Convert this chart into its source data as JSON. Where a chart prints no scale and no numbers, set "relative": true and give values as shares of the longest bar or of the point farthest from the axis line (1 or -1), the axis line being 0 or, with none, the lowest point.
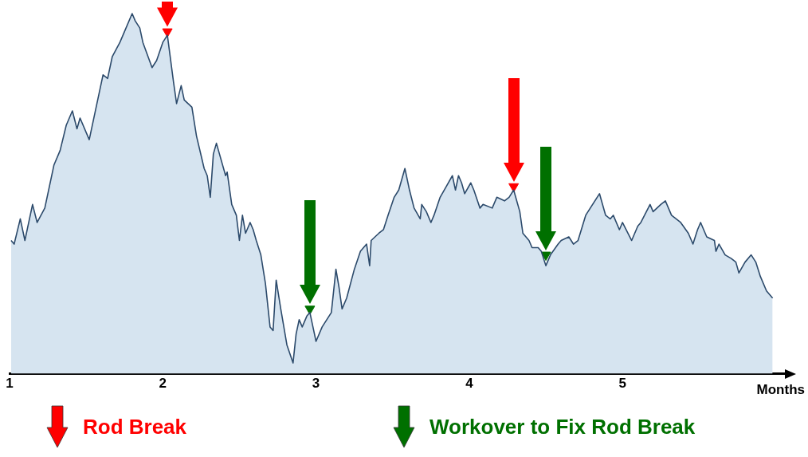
{
  "chart_data": {
    "type": "area",
    "relative": true,
    "xlabel": "Months",
    "xlim": [
      1,
      6.06
    ],
    "xticks": [
      1,
      2,
      3,
      4,
      5
    ],
    "legend": "bottom",
    "series": [
      {
        "color": "#2c4a6b",
        "x": [
          1.01,
          1.03,
          1.07,
          1.1,
          1.15,
          1.18,
          1.23,
          1.29,
          1.33,
          1.37,
          1.41,
          1.44,
          1.46,
          1.52,
          1.59,
          1.61,
          1.64,
          1.67,
          1.72,
          1.75,
          1.8,
          1.82,
          1.85,
          1.87,
          1.93,
          1.96,
          2.0,
          2.03,
          2.07,
          2.09,
          2.12,
          2.14,
          2.19,
          2.22,
          2.27,
          2.29,
          2.31,
          2.33,
          2.35,
          2.41,
          2.42,
          2.45,
          2.48,
          2.5,
          2.52,
          2.54,
          2.57,
          2.59,
          2.61,
          2.64,
          2.67,
          2.7,
          2.72,
          2.74,
          2.77,
          2.81,
          2.85,
          2.87,
          2.89,
          2.91,
          2.94,
          2.96,
          2.98,
          3.0,
          3.04,
          3.07,
          3.1,
          3.13,
          3.15,
          3.17,
          3.2,
          3.25,
          3.29,
          3.33,
          3.35,
          3.36,
          3.41,
          3.44,
          3.47,
          3.51,
          3.54,
          3.58,
          3.61,
          3.64,
          3.68,
          3.69,
          3.72,
          3.75,
          3.77,
          3.81,
          3.85,
          3.89,
          3.91,
          3.93,
          3.95,
          3.97,
          4.01,
          4.03,
          4.07,
          4.09,
          4.15,
          4.18,
          4.23,
          4.26,
          4.29,
          4.33,
          4.35,
          4.39,
          4.41,
          4.45,
          4.47,
          4.5,
          4.53,
          4.58,
          4.6,
          4.65,
          4.68,
          4.71,
          4.76,
          4.85,
          4.89,
          4.92,
          4.94,
          4.98,
          5.0,
          5.06,
          5.1,
          5.12,
          5.18,
          5.2,
          5.25,
          5.28,
          5.32,
          5.38,
          5.43,
          5.46,
          5.49,
          5.51,
          5.55,
          5.6,
          5.61,
          5.63,
          5.67,
          5.71,
          5.74,
          5.76,
          5.8,
          5.84,
          5.87,
          5.9,
          5.94,
          5.98
        ],
        "values": [
          0.37,
          0.36,
          0.43,
          0.37,
          0.47,
          0.42,
          0.46,
          0.58,
          0.62,
          0.69,
          0.73,
          0.68,
          0.71,
          0.65,
          0.79,
          0.83,
          0.82,
          0.88,
          0.92,
          0.95,
          1,
          0.98,
          0.96,
          0.92,
          0.85,
          0.87,
          0.92,
          0.94,
          0.81,
          0.75,
          0.8,
          0.76,
          0.74,
          0.66,
          0.57,
          0.55,
          0.49,
          0.61,
          0.64,
          0.55,
          0.56,
          0.47,
          0.44,
          0.37,
          0.44,
          0.39,
          0.42,
          0.4,
          0.37,
          0.33,
          0.25,
          0.13,
          0.12,
          0.26,
          0.18,
          0.08,
          0.03,
          0.11,
          0.15,
          0.13,
          0.16,
          0.17,
          0.13,
          0.09,
          0.13,
          0.15,
          0.17,
          0.29,
          0.24,
          0.18,
          0.21,
          0.29,
          0.34,
          0.36,
          0.3,
          0.37,
          0.39,
          0.4,
          0.44,
          0.49,
          0.51,
          0.57,
          0.51,
          0.46,
          0.43,
          0.47,
          0.45,
          0.42,
          0.44,
          0.49,
          0.52,
          0.55,
          0.51,
          0.55,
          0.53,
          0.5,
          0.53,
          0.51,
          0.46,
          0.47,
          0.46,
          0.49,
          0.48,
          0.49,
          0.51,
          0.45,
          0.39,
          0.37,
          0.35,
          0.35,
          0.34,
          0.3,
          0.33,
          0.36,
          0.37,
          0.38,
          0.36,
          0.37,
          0.44,
          0.5,
          0.44,
          0.43,
          0.44,
          0.4,
          0.42,
          0.37,
          0.41,
          0.42,
          0.47,
          0.45,
          0.47,
          0.48,
          0.44,
          0.42,
          0.39,
          0.36,
          0.4,
          0.42,
          0.38,
          0.37,
          0.34,
          0.36,
          0.33,
          0.32,
          0.31,
          0.28,
          0.31,
          0.33,
          0.31,
          0.27,
          0.23,
          0.21
        ]
      },
      {
        "type": "scatter",
        "marker": "triangle",
        "name": "Rod Break",
        "color": "#ff0000",
        "x": [
          2.03,
          4.29
        ],
        "values": [
          0.95,
          0.52
        ]
      },
      {
        "type": "scatter",
        "marker": "triangle",
        "name": "Workover to Fix Rod Break",
        "color": "#007000",
        "x": [
          2.96,
          4.5
        ],
        "values": [
          0.18,
          0.33
        ]
      }
    ]
  }
}
